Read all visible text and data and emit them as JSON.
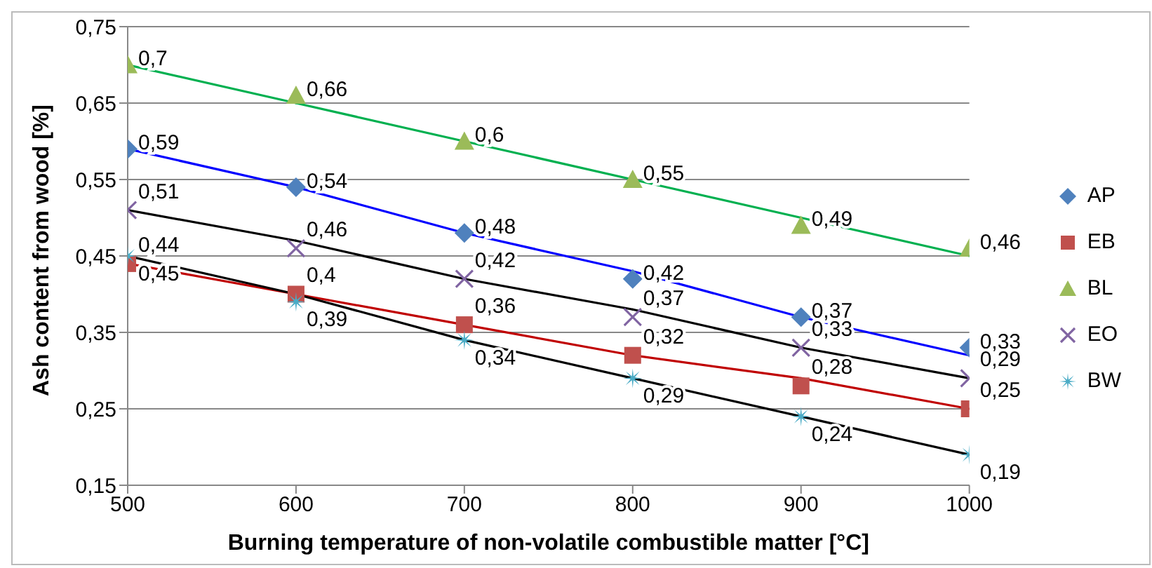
{
  "chart_data": {
    "type": "scatter",
    "xlabel": "Burning temperature of non-volatile combustible matter [°C]",
    "ylabel": "Ash content from wood [%]",
    "x": [
      500,
      600,
      700,
      800,
      900,
      1000
    ],
    "xlim": [
      500,
      1000
    ],
    "xticks": [
      500,
      600,
      700,
      800,
      900,
      1000
    ],
    "ylim": [
      0.15,
      0.75
    ],
    "yticks": [
      {
        "value": 0.15,
        "label": "0,15"
      },
      {
        "value": 0.25,
        "label": "0,25"
      },
      {
        "value": 0.35,
        "label": "0,35"
      },
      {
        "value": 0.45,
        "label": "0,45"
      },
      {
        "value": 0.55,
        "label": "0,55"
      },
      {
        "value": 0.65,
        "label": "0,65"
      },
      {
        "value": 0.75,
        "label": "0,75"
      }
    ],
    "grid": "y",
    "legend": "right",
    "series": [
      {
        "name": "AP",
        "color": "#4f81bd",
        "marker": "diamond",
        "values": [
          0.59,
          0.54,
          0.48,
          0.42,
          0.37,
          0.33
        ],
        "value_labels": [
          "0,59",
          "0,54",
          "0,48",
          "0,42",
          "0,37",
          "0,33"
        ]
      },
      {
        "name": "EB",
        "color": "#c0504d",
        "marker": "square",
        "values": [
          0.44,
          0.4,
          0.36,
          0.32,
          0.28,
          0.25
        ],
        "value_labels": [
          "0,44",
          "0,4",
          "0,36",
          "0,32",
          "0,28",
          "0,25"
        ]
      },
      {
        "name": "BL",
        "color": "#9bbb59",
        "marker": "triangle",
        "values": [
          0.7,
          0.66,
          0.6,
          0.55,
          0.49,
          0.46
        ],
        "value_labels": [
          "0,7",
          "0,66",
          "0,6",
          "0,55",
          "0,49",
          "0,46"
        ]
      },
      {
        "name": "EO",
        "color": "#8064a2",
        "marker": "cross",
        "values": [
          0.51,
          0.46,
          0.42,
          0.37,
          0.33,
          0.29
        ],
        "value_labels": [
          "0,51",
          "0,46",
          "0,42",
          "0,37",
          "0,33",
          "0,29"
        ]
      },
      {
        "name": "BW",
        "color": "#4bacc6",
        "marker": "star",
        "values": [
          0.45,
          0.39,
          0.34,
          0.29,
          0.24,
          0.19
        ],
        "value_labels": [
          "0,45",
          "0,39",
          "0,34",
          "0,29",
          "0,24",
          "0,19"
        ]
      },
      {
        "type": "line",
        "color": "#00b050",
        "marker": "none",
        "values": [
          0.7,
          0.65,
          0.6,
          0.55,
          0.5,
          0.45
        ]
      },
      {
        "type": "line",
        "color": "#0000ff",
        "marker": "none",
        "values": [
          0.59,
          0.54,
          0.48,
          0.43,
          0.37,
          0.32
        ]
      },
      {
        "type": "line",
        "color": "#000000",
        "marker": "none",
        "values": [
          0.51,
          0.47,
          0.42,
          0.38,
          0.33,
          0.29
        ]
      },
      {
        "type": "line",
        "color": "#c00000",
        "marker": "none",
        "values": [
          0.44,
          0.4,
          0.36,
          0.32,
          0.29,
          0.25
        ]
      },
      {
        "type": "line",
        "color": "#000000",
        "marker": "none",
        "values": [
          0.45,
          0.4,
          0.34,
          0.29,
          0.24,
          0.19
        ]
      }
    ]
  }
}
